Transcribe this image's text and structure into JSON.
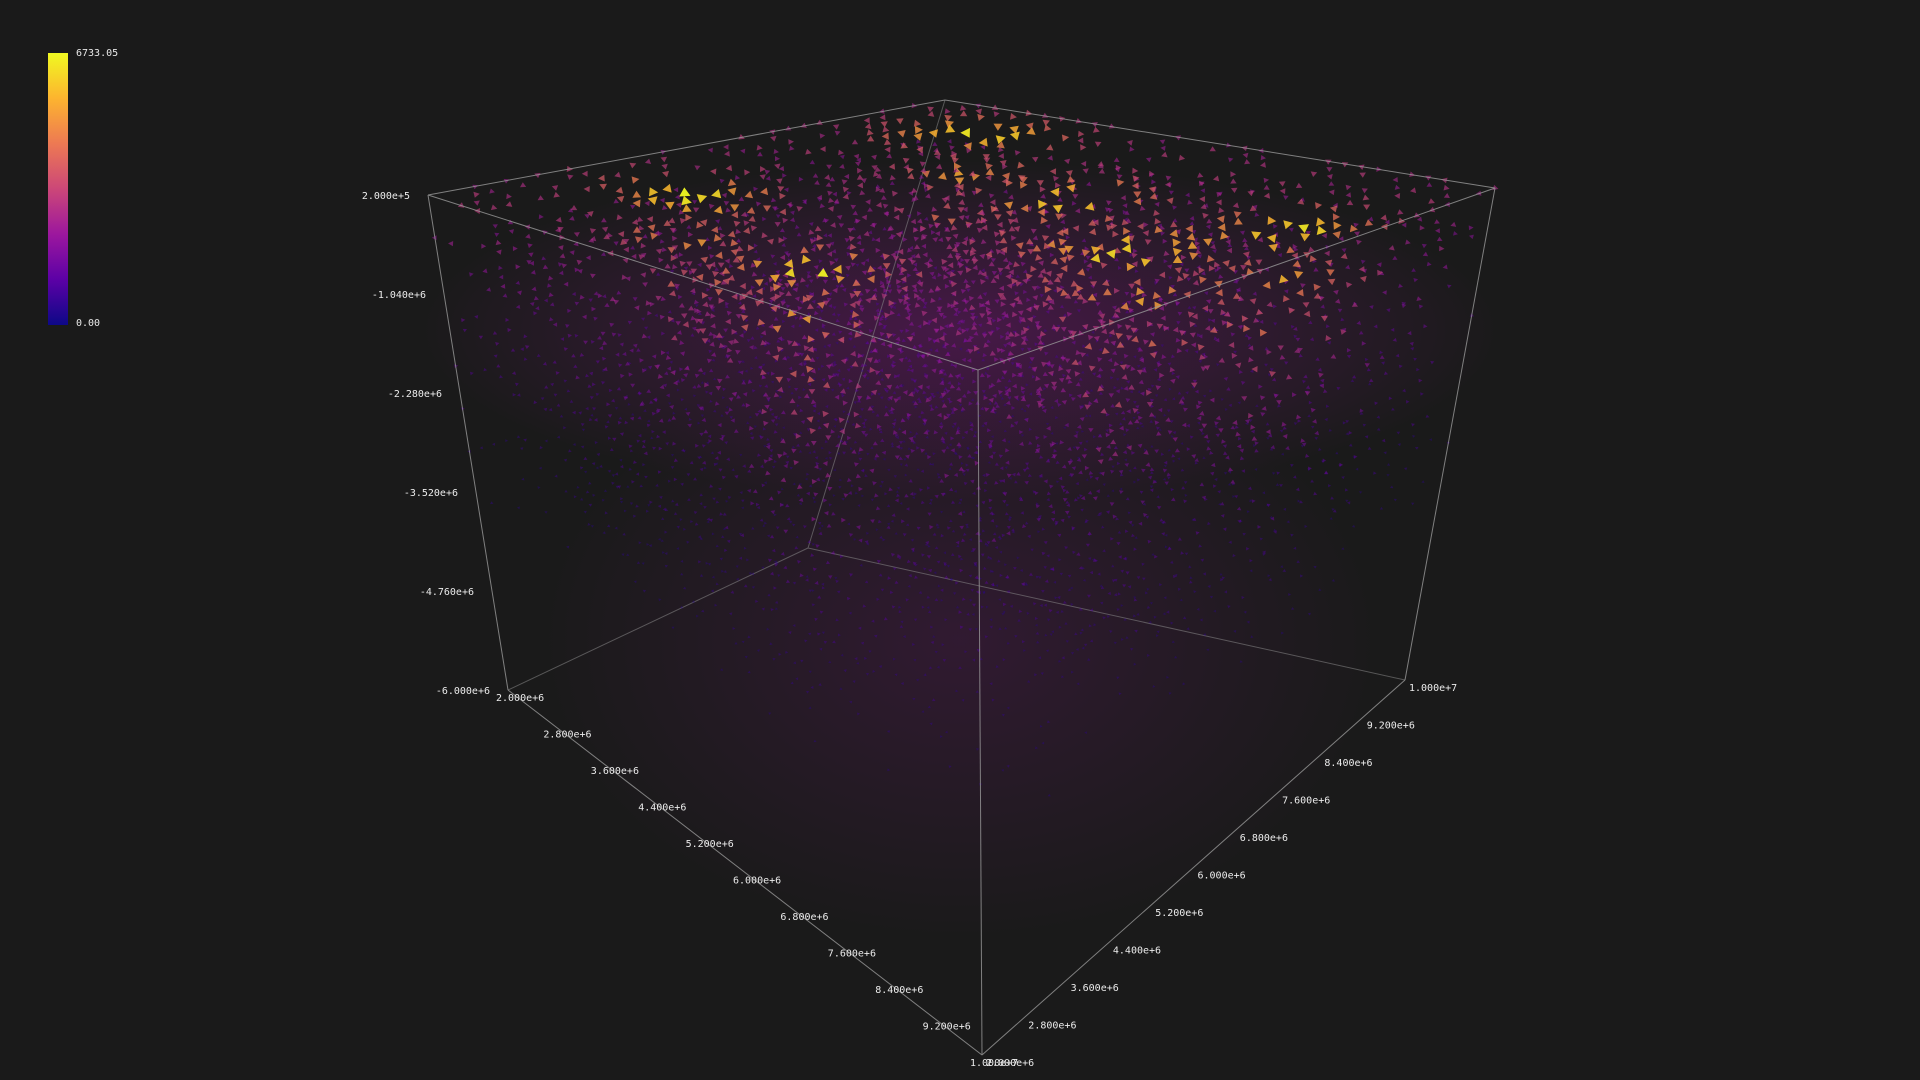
{
  "chart_data": {
    "type": "3d-vector-field",
    "title": "",
    "colormap": "plasma",
    "colorbar": {
      "max_label": "6733.05",
      "min_label": "0.00",
      "min": 0.0,
      "max": 6733.05,
      "colors": [
        "#0d0887",
        "#5c01a6",
        "#9c179e",
        "#cc4778",
        "#ed7953",
        "#fdb42f",
        "#f0f921"
      ]
    },
    "z_axis": {
      "range": [
        -6000000,
        200000
      ],
      "tick_labels": [
        "2.000e+5",
        "-1.040e+6",
        "-2.280e+6",
        "-3.520e+6",
        "-4.760e+6",
        "-6.000e+6"
      ]
    },
    "x_axis": {
      "range": [
        2000000,
        10000000
      ],
      "tick_labels": [
        "2.000e+6",
        "2.800e+6",
        "3.600e+6",
        "4.400e+6",
        "5.200e+6",
        "6.000e+6",
        "6.800e+6",
        "7.600e+6",
        "8.400e+6",
        "9.200e+6",
        "1.000e+7"
      ]
    },
    "y_axis": {
      "range": [
        2000000,
        10000000
      ],
      "tick_labels": [
        "2.000e+6",
        "2.800e+6",
        "3.600e+6",
        "4.400e+6",
        "5.200e+6",
        "6.000e+6",
        "6.800e+6",
        "7.600e+6",
        "8.400e+6",
        "9.200e+6",
        "1.000e+7"
      ]
    },
    "grid": false,
    "background": "#1a1a1a",
    "box_color": "#8a8a8a"
  }
}
